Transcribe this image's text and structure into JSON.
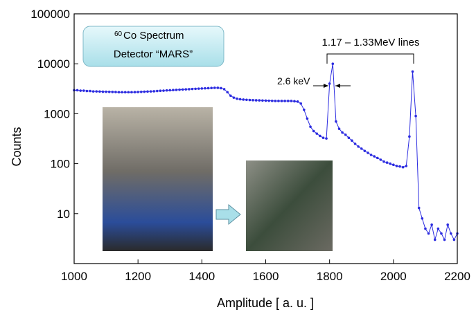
{
  "chart_data": {
    "type": "line",
    "x_label": "Amplitude  [ a. u. ]",
    "y_label": "Counts",
    "annotations": {
      "box_sup": "60",
      "box_line1": "Co Spectrum",
      "box_line2": "Detector “MARS”",
      "resolution": "2.6 keV",
      "lines": "1.17 – 1.33MeV lines"
    },
    "log_y": true,
    "color": "#2b2be0",
    "xlim": [
      1000,
      2200
    ],
    "xticks": [
      1000,
      1200,
      1400,
      1600,
      1800,
      2000,
      2200
    ],
    "ylim": [
      1,
      100000
    ],
    "yticks": [
      10,
      100,
      1000,
      10000,
      100000
    ],
    "x": [
      1000,
      1010,
      1020,
      1030,
      1040,
      1050,
      1060,
      1070,
      1080,
      1090,
      1100,
      1110,
      1120,
      1130,
      1140,
      1150,
      1160,
      1170,
      1180,
      1190,
      1200,
      1210,
      1220,
      1230,
      1240,
      1250,
      1260,
      1270,
      1280,
      1290,
      1300,
      1310,
      1320,
      1330,
      1340,
      1350,
      1360,
      1370,
      1380,
      1390,
      1400,
      1410,
      1420,
      1430,
      1440,
      1450,
      1460,
      1470,
      1480,
      1490,
      1500,
      1510,
      1520,
      1530,
      1540,
      1550,
      1560,
      1570,
      1580,
      1590,
      1600,
      1610,
      1620,
      1630,
      1640,
      1650,
      1660,
      1670,
      1680,
      1690,
      1700,
      1710,
      1720,
      1730,
      1740,
      1750,
      1760,
      1770,
      1780,
      1790,
      1800,
      1810,
      1820,
      1830,
      1840,
      1850,
      1860,
      1870,
      1880,
      1890,
      1900,
      1910,
      1920,
      1930,
      1940,
      1950,
      1960,
      1970,
      1980,
      1990,
      2000,
      2010,
      2020,
      2030,
      2040,
      2050,
      2060,
      2070,
      2080,
      2090,
      2100,
      2110,
      2120,
      2130,
      2140,
      2150,
      2160,
      2170,
      2180,
      2190,
      2200
    ],
    "values": [
      2950,
      2950,
      2900,
      2900,
      2850,
      2850,
      2800,
      2800,
      2780,
      2760,
      2750,
      2740,
      2730,
      2720,
      2700,
      2700,
      2700,
      2700,
      2700,
      2710,
      2720,
      2740,
      2760,
      2780,
      2800,
      2820,
      2850,
      2880,
      2900,
      2930,
      2950,
      2980,
      3000,
      3030,
      3050,
      3080,
      3100,
      3130,
      3150,
      3180,
      3200,
      3230,
      3250,
      3280,
      3300,
      3300,
      3250,
      3100,
      2700,
      2300,
      2100,
      2000,
      1950,
      1920,
      1900,
      1880,
      1870,
      1860,
      1850,
      1840,
      1830,
      1820,
      1810,
      1800,
      1800,
      1800,
      1800,
      1800,
      1800,
      1780,
      1750,
      1600,
      1200,
      800,
      550,
      450,
      400,
      360,
      330,
      320,
      4000,
      10000,
      700,
      500,
      420,
      380,
      330,
      290,
      250,
      220,
      200,
      180,
      165,
      150,
      140,
      130,
      120,
      110,
      105,
      100,
      95,
      90,
      88,
      85,
      90,
      350,
      7000,
      900,
      13,
      8,
      5,
      4,
      6,
      3,
      5,
      4,
      3,
      6,
      4,
      3,
      4
    ]
  }
}
